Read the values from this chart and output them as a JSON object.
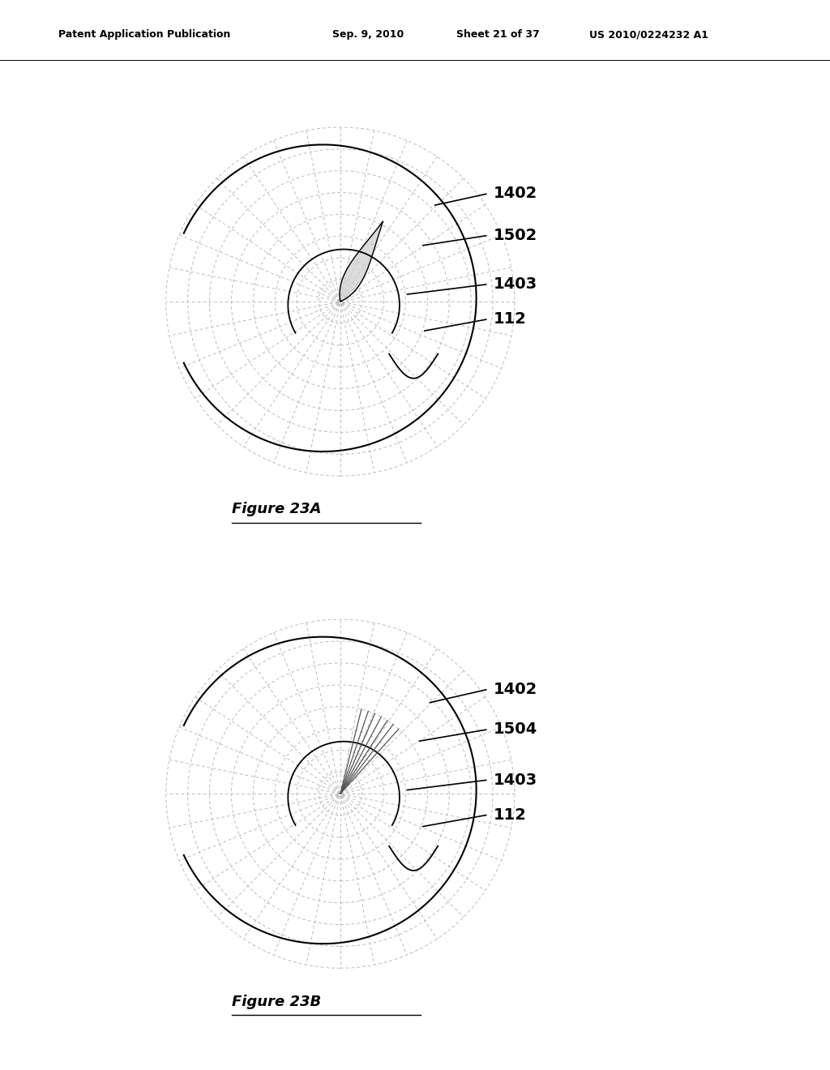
{
  "bg_color": "#ffffff",
  "line_color": "#999999",
  "dark_line_color": "#555555",
  "black_color": "#000000",
  "header_text": "Patent Application Publication",
  "header_date": "Sep. 9, 2010",
  "header_sheet": "Sheet 21 of 37",
  "header_patent": "US 2010/0224232 A1",
  "fig_a_title": "Figure 23A",
  "fig_b_title": "Figure 23B",
  "fig_a_labels": [
    "1402",
    "1502",
    "1403",
    "112"
  ],
  "fig_b_labels": [
    "1402",
    "1504",
    "1403",
    "112"
  ],
  "num_radial_lines": 16,
  "num_circles": 8,
  "grid_color": "#bbbbbb",
  "label_fontsize": 14,
  "header_fontsize": 9,
  "caption_fontsize": 13
}
